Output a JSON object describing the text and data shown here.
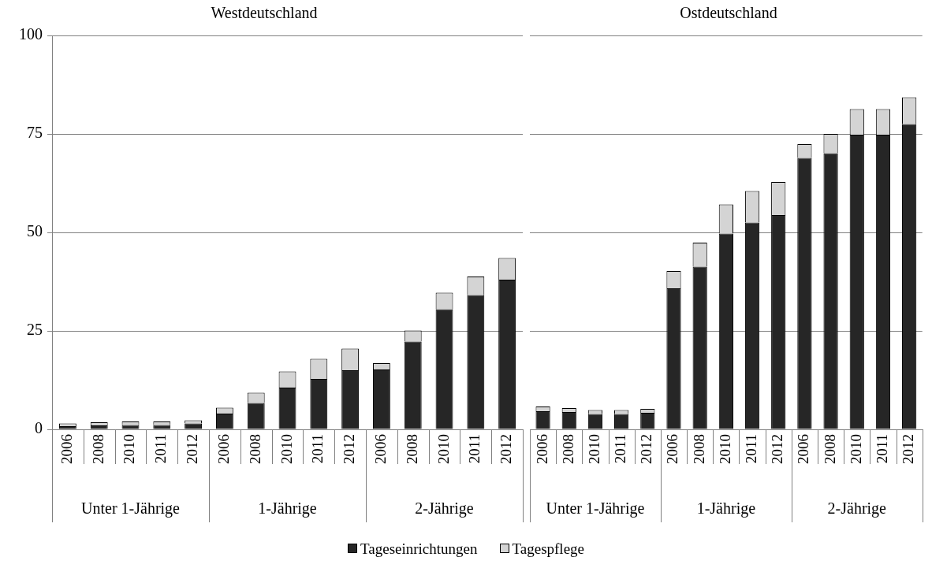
{
  "chart_data": [
    {
      "type": "bar",
      "title": "Westdeutschland",
      "stacked": true,
      "grid": "y",
      "legend": "bottom",
      "categories": [
        "2006",
        "2008",
        "2010",
        "2011",
        "2012",
        "2006",
        "2008",
        "2010",
        "2011",
        "2012",
        "2006",
        "2008",
        "2010",
        "2011",
        "2012"
      ],
      "annotations": [
        "Unter 1-Jährige",
        "1-Jährige",
        "2-Jährige"
      ],
      "ylim": [
        0,
        100
      ],
      "yticks": [
        0,
        25,
        50,
        75,
        100
      ],
      "series": [
        {
          "name": "Tageseinrichtungen",
          "color": "#262626",
          "values": [
            0.8,
            1.0,
            1.1,
            1.1,
            1.5,
            4.0,
            6.7,
            10.6,
            12.8,
            15.0,
            15.2,
            22.3,
            30.5,
            34.1,
            38.0
          ]
        },
        {
          "name": "Tagespflege",
          "color": "#d4d4d4",
          "values": [
            0.7,
            0.8,
            0.9,
            0.9,
            0.8,
            1.5,
            2.6,
            4.1,
            5.1,
            5.5,
            1.6,
            2.8,
            4.2,
            4.7,
            5.5
          ]
        }
      ]
    },
    {
      "type": "bar",
      "title": "Ostdeutschland",
      "stacked": true,
      "grid": "y",
      "tick_labels": "x",
      "categories": [
        "2006",
        "2008",
        "2010",
        "2011",
        "2012",
        "2006",
        "2008",
        "2010",
        "2011",
        "2012",
        "2006",
        "2008",
        "2010",
        "2011",
        "2012"
      ],
      "annotations": [
        "Unter 1-Jährige",
        "1-Jährige",
        "2-Jährige"
      ],
      "ylim": [
        0,
        100
      ],
      "yticks": [
        0,
        25,
        50,
        75,
        100
      ],
      "series": [
        {
          "color": "#262626",
          "values": [
            4.6,
            4.4,
            3.9,
            3.9,
            4.2,
            35.8,
            41.3,
            49.7,
            52.5,
            54.4,
            68.9,
            70.1,
            74.8,
            74.8,
            77.5
          ]
        },
        {
          "color": "#d4d4d4",
          "values": [
            1.2,
            1.0,
            1.0,
            1.0,
            1.0,
            4.4,
            6.1,
            7.4,
            8.0,
            8.4,
            3.5,
            4.9,
            6.5,
            6.5,
            6.8
          ]
        }
      ]
    }
  ]
}
